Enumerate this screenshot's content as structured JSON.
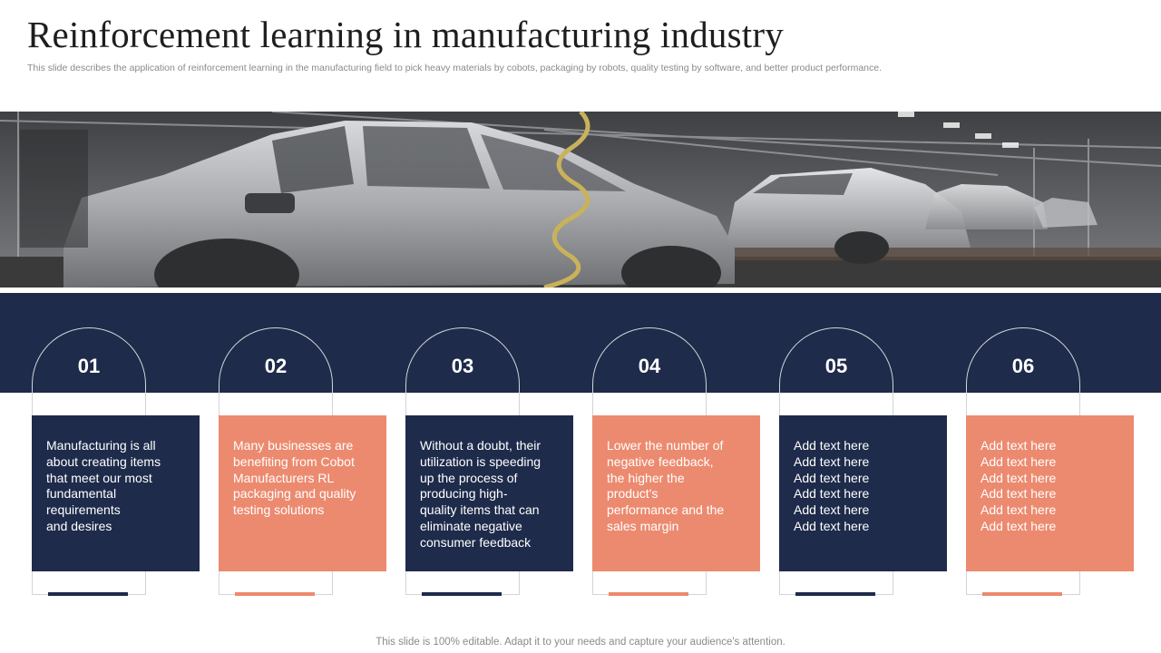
{
  "header": {
    "title": "Reinforcement learning in manufacturing industry",
    "subtitle": "This slide describes the application of reinforcement learning in the manufacturing field to pick heavy materials by cobots, packaging by robots, quality testing by software, and better product performance."
  },
  "colors": {
    "navy": "#1e2b4a",
    "coral": "#ec8a6f"
  },
  "cards": [
    {
      "number": "01",
      "style": "navy",
      "lines": [
        "Manufacturing is all",
        "about creating items",
        "that meet our most",
        "fundamental",
        "requirements",
        "and desires"
      ]
    },
    {
      "number": "02",
      "style": "coral",
      "lines": [
        "Many businesses are",
        "benefiting from Cobot",
        "Manufacturers RL",
        "packaging and quality",
        "testing solutions"
      ]
    },
    {
      "number": "03",
      "style": "navy",
      "lines": [
        "Without a doubt, their",
        "utilization is speeding",
        "up the process of",
        "producing high-",
        "quality items that can",
        "eliminate negative",
        "consumer feedback"
      ]
    },
    {
      "number": "04",
      "style": "coral",
      "lines": [
        "Lower the number of",
        "negative feedback,",
        "the higher the",
        "product's",
        "performance and the",
        "sales margin"
      ]
    },
    {
      "number": "05",
      "style": "navy",
      "lines": [
        "Add text here",
        "Add text here",
        "Add text here",
        "Add text here",
        "Add text here",
        "Add text here"
      ]
    },
    {
      "number": "06",
      "style": "coral",
      "lines": [
        "Add text here",
        "Add text here",
        "Add text here",
        "Add text here",
        "Add text here",
        "Add text here"
      ]
    }
  ],
  "footer": "This slide is 100% editable. Adapt it to your needs and capture your audience's attention."
}
